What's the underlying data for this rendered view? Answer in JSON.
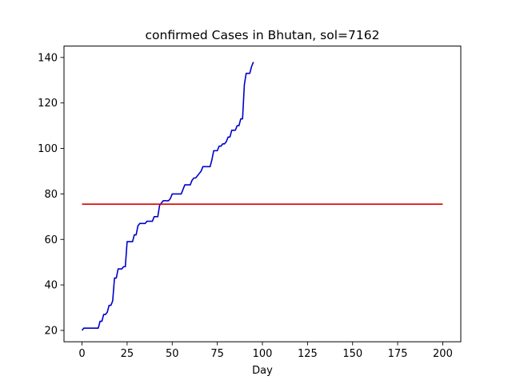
{
  "chart_data": {
    "type": "line",
    "title": "confirmed Cases in Bhutan, sol=7162",
    "xlabel": "Day",
    "ylabel": "",
    "xlim": [
      -10,
      210
    ],
    "ylim": [
      15,
      145
    ],
    "xticks": [
      0,
      25,
      50,
      75,
      100,
      125,
      150,
      175,
      200
    ],
    "yticks": [
      20,
      40,
      60,
      80,
      100,
      120,
      140
    ],
    "grid": false,
    "series": [
      {
        "color": "#0000cc",
        "x": [
          0,
          1,
          2,
          5,
          9,
          10,
          11,
          12,
          13,
          14,
          15,
          16,
          17,
          18,
          19,
          20,
          21,
          22,
          23,
          24,
          25,
          26,
          27,
          28,
          29,
          30,
          31,
          32,
          33,
          35,
          36,
          37,
          39,
          40,
          41,
          42,
          43,
          44,
          45,
          46,
          47,
          48,
          49,
          50,
          51,
          52,
          55,
          56,
          57,
          58,
          60,
          61,
          62,
          63,
          65,
          66,
          67,
          68,
          70,
          71,
          72,
          73,
          74,
          75,
          76,
          77,
          78,
          79,
          80,
          81,
          82,
          83,
          84,
          85,
          86,
          87,
          88,
          89,
          90,
          91,
          92,
          93,
          94,
          95
        ],
        "y": [
          20,
          21,
          21,
          21,
          21,
          24,
          24,
          27,
          27,
          28,
          31,
          31,
          33,
          43,
          43,
          47,
          47,
          47,
          48,
          48,
          59,
          59,
          59,
          59,
          62,
          62,
          66,
          67,
          67,
          67,
          68,
          68,
          68,
          70,
          70,
          70,
          75,
          76,
          77,
          77,
          77,
          77,
          78,
          80,
          80,
          80,
          80,
          82,
          84,
          84,
          84,
          86,
          87,
          87,
          89,
          90,
          92,
          92,
          92,
          92,
          95,
          99,
          99,
          99,
          101,
          101,
          102,
          102,
          103,
          105,
          105,
          108,
          108,
          108,
          110,
          110,
          113,
          113,
          128,
          133,
          133,
          133,
          136,
          138
        ]
      },
      {
        "color": "#dd0000",
        "x": [
          0,
          200
        ],
        "y": [
          75.5,
          75.5
        ]
      }
    ]
  }
}
